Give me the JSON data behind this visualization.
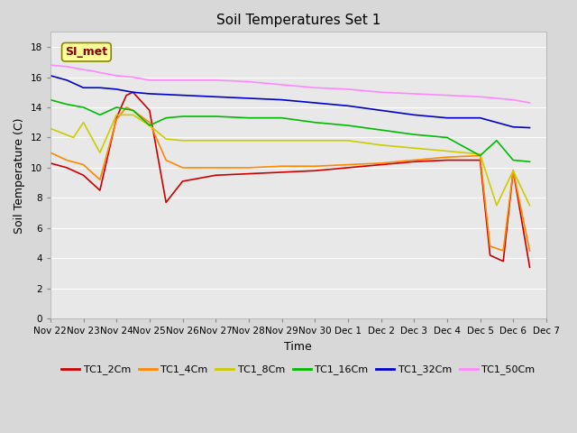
{
  "title": "Soil Temperatures Set 1",
  "xlabel": "Time",
  "ylabel": "Soil Temperature (C)",
  "ylim": [
    0,
    19
  ],
  "yticks": [
    0,
    2,
    4,
    6,
    8,
    10,
    12,
    14,
    16,
    18
  ],
  "annotation_text": "SI_met",
  "annotation_color": "#8b0000",
  "annotation_bg": "#ffff99",
  "annotation_border": "#888800",
  "fig_bg": "#d8d8d8",
  "plot_bg": "#e8e8e8",
  "grid_color": "#ffffff",
  "series_order": [
    "TC1_2Cm",
    "TC1_4Cm",
    "TC1_8Cm",
    "TC1_16Cm",
    "TC1_32Cm",
    "TC1_50Cm"
  ],
  "series": {
    "TC1_2Cm": {
      "color": "#cc0000",
      "lw": 1.2
    },
    "TC1_4Cm": {
      "color": "#ff8800",
      "lw": 1.2
    },
    "TC1_8Cm": {
      "color": "#cccc00",
      "lw": 1.2
    },
    "TC1_16Cm": {
      "color": "#00bb00",
      "lw": 1.2
    },
    "TC1_32Cm": {
      "color": "#0000cc",
      "lw": 1.2
    },
    "TC1_50Cm": {
      "color": "#ff88ff",
      "lw": 1.2
    }
  },
  "tc1_2_x": [
    0,
    0.5,
    1,
    1.5,
    2,
    2.3,
    2.5,
    3,
    3.5,
    4,
    5,
    6,
    7,
    8,
    9,
    10,
    11,
    12,
    13,
    13.3,
    13.7,
    14,
    14.5
  ],
  "tc1_2_y": [
    10.3,
    10.0,
    9.5,
    8.5,
    13.3,
    14.8,
    15.0,
    13.8,
    7.7,
    9.1,
    9.5,
    9.6,
    9.7,
    9.8,
    10.0,
    10.2,
    10.4,
    10.5,
    10.5,
    4.2,
    3.8,
    9.8,
    3.4
  ],
  "tc1_4_x": [
    0,
    0.5,
    1,
    1.5,
    2,
    2.3,
    2.5,
    3,
    3.5,
    4,
    5,
    6,
    7,
    8,
    9,
    10,
    11,
    12,
    13,
    13.3,
    13.7,
    14,
    14.5
  ],
  "tc1_4_y": [
    11.0,
    10.5,
    10.2,
    9.2,
    13.2,
    14.0,
    13.8,
    13.0,
    10.5,
    10.0,
    10.0,
    10.0,
    10.1,
    10.1,
    10.2,
    10.3,
    10.5,
    10.7,
    10.8,
    4.8,
    4.5,
    9.8,
    4.5
  ],
  "tc1_8_x": [
    0,
    0.7,
    1,
    1.5,
    2,
    2.5,
    3,
    3.5,
    4,
    5,
    6,
    7,
    8,
    9,
    10,
    11,
    12,
    13,
    13.5,
    14,
    14.5
  ],
  "tc1_8_y": [
    12.6,
    12.0,
    13.0,
    11.0,
    13.5,
    13.5,
    12.8,
    11.9,
    11.8,
    11.8,
    11.8,
    11.8,
    11.8,
    11.8,
    11.5,
    11.3,
    11.1,
    10.9,
    7.5,
    9.8,
    7.5
  ],
  "tc1_16_x": [
    0,
    0.5,
    1,
    1.5,
    2,
    2.5,
    3,
    3.5,
    4,
    5,
    6,
    7,
    8,
    9,
    10,
    11,
    12,
    13,
    13.5,
    14,
    14.5
  ],
  "tc1_16_y": [
    14.5,
    14.2,
    14.0,
    13.5,
    14.0,
    13.8,
    12.8,
    13.3,
    13.4,
    13.4,
    13.3,
    13.3,
    13.0,
    12.8,
    12.5,
    12.2,
    12.0,
    10.8,
    11.8,
    10.5,
    10.4
  ],
  "tc1_32_x": [
    0,
    0.5,
    1,
    1.5,
    2,
    2.5,
    3,
    4,
    5,
    6,
    7,
    8,
    9,
    10,
    11,
    12,
    13,
    13.5,
    14,
    14.5
  ],
  "tc1_32_y": [
    16.1,
    15.8,
    15.3,
    15.3,
    15.2,
    15.0,
    14.9,
    14.8,
    14.7,
    14.6,
    14.5,
    14.3,
    14.1,
    13.8,
    13.5,
    13.3,
    13.3,
    13.0,
    12.7,
    12.65
  ],
  "tc1_50_x": [
    0,
    0.5,
    1,
    1.3,
    1.5,
    2,
    2.5,
    3,
    4,
    5,
    6,
    7,
    8,
    9,
    10,
    11,
    12,
    13,
    13.5,
    14,
    14.5
  ],
  "tc1_50_y": [
    16.8,
    16.7,
    16.5,
    16.4,
    16.3,
    16.1,
    16.0,
    15.8,
    15.8,
    15.8,
    15.7,
    15.5,
    15.3,
    15.2,
    15.0,
    14.9,
    14.8,
    14.7,
    14.6,
    14.5,
    14.3
  ]
}
